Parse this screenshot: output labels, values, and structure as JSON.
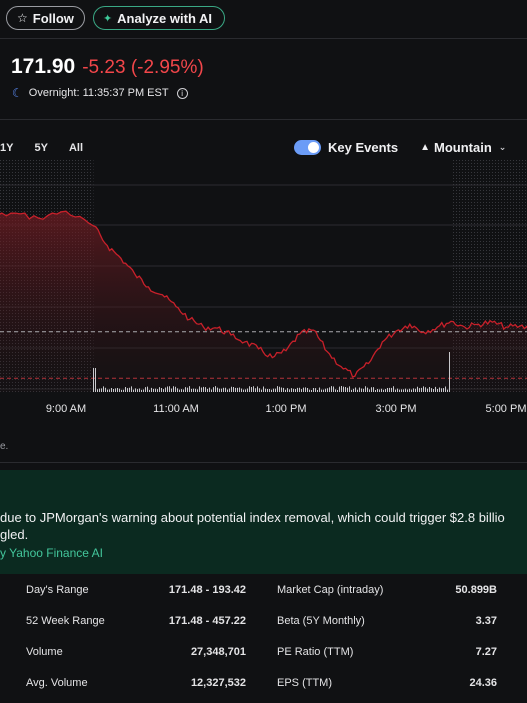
{
  "actions": {
    "follow_label": "Follow",
    "analyze_label": "Analyze with AI"
  },
  "quote": {
    "price": "171.90",
    "change": "-5.23 (-2.95%)",
    "overnight": "Overnight: 11:35:37 PM EST",
    "change_color": "#f2464a"
  },
  "ranges": [
    "1Y",
    "5Y",
    "All"
  ],
  "controls": {
    "key_events_label": "Key Events",
    "chart_type_label": "Mountain"
  },
  "chart_data": {
    "type": "area",
    "x_ticks": [
      "9:00 AM",
      "11:00 AM",
      "1:00 PM",
      "3:00 PM",
      "5:00 PM"
    ],
    "prev_close": 177.13,
    "ylim": [
      171.0,
      194.0
    ],
    "line_color": "#c8202a",
    "x": [
      "04:00",
      "04:30",
      "05:00",
      "05:30",
      "06:00",
      "06:30",
      "07:00",
      "07:30",
      "08:00",
      "08:30",
      "09:00",
      "09:30",
      "09:45",
      "10:00",
      "10:15",
      "10:30",
      "10:45",
      "11:00",
      "11:15",
      "11:30",
      "11:45",
      "12:00",
      "12:15",
      "12:30",
      "12:45",
      "13:00",
      "13:15",
      "13:30",
      "13:45",
      "14:00",
      "14:15",
      "14:30",
      "14:45",
      "15:00",
      "15:15",
      "15:30",
      "15:45",
      "16:00",
      "16:15",
      "16:30",
      "16:45",
      "17:00",
      "17:15",
      "17:30"
    ],
    "y": [
      190.4,
      190.6,
      190.2,
      189.8,
      190.1,
      189.6,
      189.0,
      188.6,
      189.2,
      188.7,
      189.4,
      187.9,
      185.9,
      184.6,
      183.0,
      181.7,
      180.9,
      179.7,
      178.4,
      177.6,
      177.5,
      176.8,
      176.1,
      175.4,
      174.5,
      175.2,
      176.9,
      177.3,
      175.1,
      173.6,
      172.6,
      173.9,
      176.1,
      177.2,
      177.9,
      177.1,
      177.6,
      178.2,
      177.6,
      177.9,
      178.1,
      177.6,
      177.7,
      177.4
    ],
    "market_open": "09:30",
    "market_close": "16:00"
  },
  "chart_footnote": "e.",
  "ai_summary": {
    "text_line1": " due to JPMorgan's warning about potential index removal, which could trigger $2.8 billio",
    "text_line2": "gled.",
    "source": "y Yahoo Finance AI"
  },
  "stats": [
    {
      "l1": "Day's Range",
      "v1": "171.48 - 193.42",
      "l2": "Market Cap (intraday)",
      "v2": "50.899B"
    },
    {
      "l1": "52 Week Range",
      "v1": "171.48 - 457.22",
      "l2": "Beta (5Y Monthly)",
      "v2": "3.37"
    },
    {
      "l1": "Volume",
      "v1": "27,348,701",
      "l2": "PE Ratio (TTM)",
      "v2": "7.27"
    },
    {
      "l1": "Avg. Volume",
      "v1": "12,327,532",
      "l2": "EPS (TTM)",
      "v2": "24.36"
    }
  ]
}
